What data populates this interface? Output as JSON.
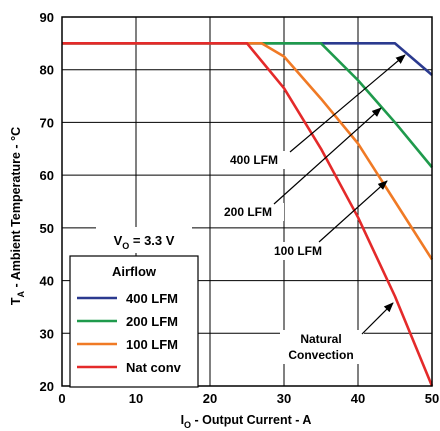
{
  "chart_data": {
    "type": "line",
    "title": "",
    "xlabel_main": "I",
    "xlabel_sub": "O",
    "xlabel_rest": " - Output Current - A",
    "ylabel_main": "T",
    "ylabel_sub": "A",
    "ylabel_rest": " - Ambient Temperature - °C",
    "xlim": [
      0,
      50
    ],
    "ylim": [
      20,
      90
    ],
    "xticks": [
      0,
      10,
      20,
      30,
      40,
      50
    ],
    "yticks": [
      20,
      30,
      40,
      50,
      60,
      70,
      80,
      90
    ],
    "grid": true,
    "vo_label_main": "V",
    "vo_label_sub": "O",
    "vo_label_rest": " = 3.3 V",
    "legend": {
      "title": "Airflow",
      "placement": "bottom-left",
      "entries": [
        "400 LFM",
        "200 LFM",
        "100 LFM",
        "Nat conv"
      ]
    },
    "series": [
      {
        "name": "400 LFM",
        "color": "#2b3a8f",
        "x": [
          0,
          45,
          50
        ],
        "y": [
          85,
          85,
          79
        ]
      },
      {
        "name": "200 LFM",
        "color": "#1f9a4c",
        "x": [
          0,
          35,
          40,
          45,
          50
        ],
        "y": [
          85,
          85,
          78,
          70,
          61.5
        ]
      },
      {
        "name": "100 LFM",
        "color": "#f07a25",
        "x": [
          0,
          27,
          30,
          35,
          40,
          45,
          50
        ],
        "y": [
          85,
          85,
          82.5,
          74.5,
          66,
          55,
          44
        ]
      },
      {
        "name": "Nat conv",
        "color": "#e42a2a",
        "x": [
          0,
          25,
          30,
          35,
          40,
          45,
          50
        ],
        "y": [
          85,
          85,
          76.5,
          65,
          52,
          37,
          20
        ]
      }
    ],
    "annotations": [
      {
        "text": "400 LFM"
      },
      {
        "text": "200 LFM"
      },
      {
        "text": "100 LFM"
      },
      {
        "text_line1": "Natural",
        "text_line2": "Convection"
      }
    ]
  }
}
